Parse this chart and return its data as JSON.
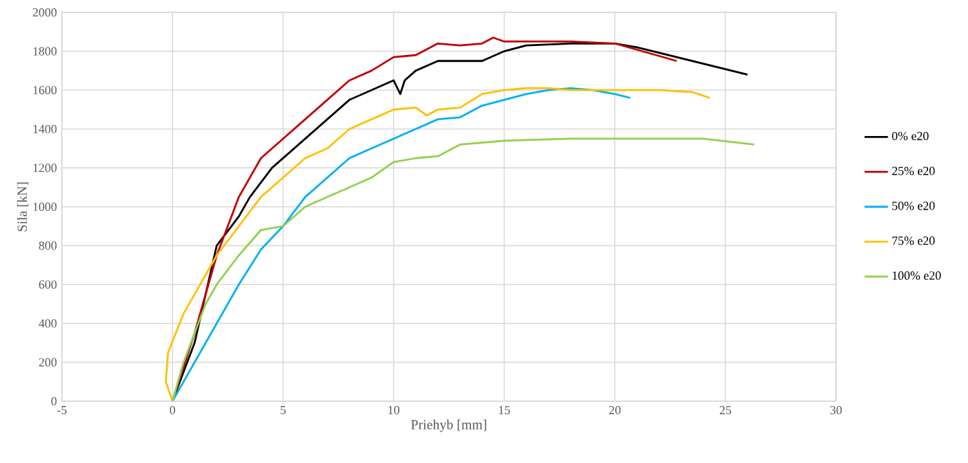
{
  "chart_data": {
    "type": "line",
    "xlabel": "Priehyb [mm]",
    "ylabel": "Sila [kN]",
    "xlim": [
      -5,
      30
    ],
    "xticks": [
      -5,
      0,
      5,
      10,
      15,
      20,
      25,
      30
    ],
    "ylim": [
      0,
      2000
    ],
    "yticks": [
      0,
      200,
      400,
      600,
      800,
      1000,
      1200,
      1400,
      1600,
      1800,
      2000
    ],
    "grid": true,
    "legend": "right",
    "marker": "none",
    "line_style": "solid",
    "series": [
      {
        "name": "0% e20",
        "color": "#000000",
        "x": [
          0,
          1,
          2,
          3,
          3.5,
          4.5,
          5.5,
          6,
          7,
          8,
          9,
          10,
          10.3,
          10.5,
          11,
          12,
          14,
          15,
          16,
          18,
          20,
          21,
          26
        ],
        "values": [
          0,
          300,
          800,
          950,
          1050,
          1200,
          1300,
          1350,
          1450,
          1550,
          1600,
          1650,
          1580,
          1650,
          1700,
          1750,
          1750,
          1800,
          1830,
          1840,
          1840,
          1820,
          1680
        ]
      },
      {
        "name": "25% e20",
        "color": "#c00000",
        "x": [
          0,
          1,
          2,
          3,
          4,
          5,
          6,
          7,
          8,
          9,
          10,
          11,
          12,
          13,
          14,
          14.5,
          15,
          16,
          18,
          20,
          22.8
        ],
        "values": [
          0,
          350,
          750,
          1050,
          1250,
          1350,
          1450,
          1550,
          1650,
          1700,
          1770,
          1780,
          1840,
          1830,
          1840,
          1870,
          1850,
          1850,
          1850,
          1840,
          1750
        ]
      },
      {
        "name": "50% e20",
        "color": "#00b0f0",
        "x": [
          0,
          1,
          2,
          3,
          4,
          5,
          6,
          7,
          8,
          9,
          10,
          11,
          12,
          13,
          14,
          15,
          16,
          17,
          18,
          19,
          20,
          20.7
        ],
        "values": [
          0,
          200,
          400,
          600,
          780,
          900,
          1050,
          1150,
          1250,
          1300,
          1350,
          1400,
          1450,
          1460,
          1520,
          1550,
          1580,
          1600,
          1610,
          1600,
          1580,
          1560
        ]
      },
      {
        "name": "75% e20",
        "color": "#ffc000",
        "x": [
          0,
          -0.3,
          -0.2,
          0.5,
          1,
          2,
          3,
          4,
          5,
          6,
          7,
          8,
          9,
          10,
          11,
          11.5,
          12,
          13,
          14,
          15,
          16,
          17,
          18,
          19,
          20,
          22,
          23.5,
          24.3
        ],
        "values": [
          0,
          100,
          250,
          450,
          550,
          750,
          900,
          1050,
          1150,
          1250,
          1300,
          1400,
          1450,
          1500,
          1510,
          1470,
          1500,
          1510,
          1580,
          1600,
          1610,
          1610,
          1600,
          1600,
          1600,
          1600,
          1590,
          1560
        ]
      },
      {
        "name": "100% e20",
        "color": "#92d050",
        "x": [
          0,
          0.5,
          1,
          1.5,
          2,
          3,
          4,
          5,
          6,
          7,
          8,
          9,
          10,
          11,
          12,
          13,
          15,
          18,
          20,
          24,
          26.3
        ],
        "values": [
          0,
          200,
          350,
          500,
          600,
          750,
          880,
          900,
          1000,
          1050,
          1100,
          1150,
          1230,
          1250,
          1260,
          1320,
          1340,
          1350,
          1350,
          1350,
          1320
        ]
      }
    ]
  }
}
